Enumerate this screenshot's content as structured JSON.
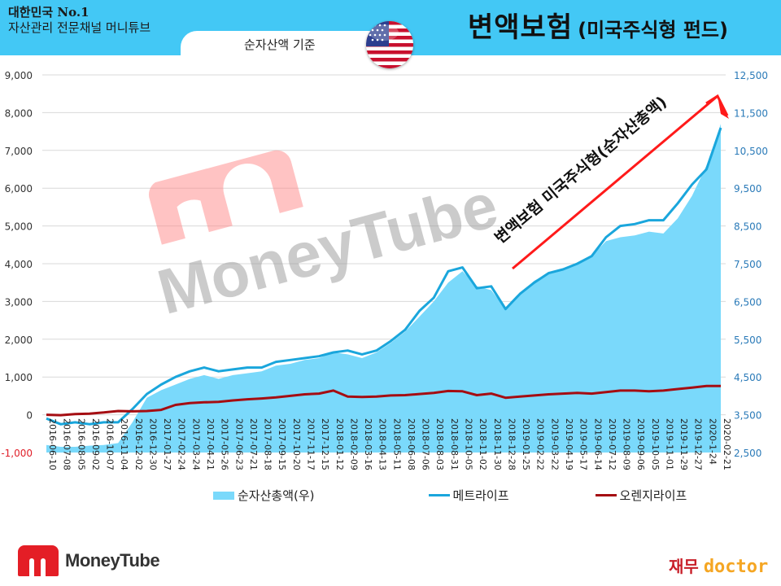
{
  "header": {
    "tagline_line1": "대한민국 No.1",
    "tagline_line2": "자산관리 전문채널 머니튜브",
    "subtitle": "순자산액 기준",
    "title_main": "변액보험",
    "title_sub": "(미국주식형 펀드)",
    "flag_icon": "us-flag-icon",
    "band_color": "#43c8f5"
  },
  "watermark": {
    "text": "MoneyTube"
  },
  "annotation": {
    "text": "변액보험 미국주식형(순자산총액)",
    "arrow_color": "#ff1a1a"
  },
  "legend": {
    "items": [
      {
        "label": "순자산총액(우)",
        "color": "#7ad9fb",
        "kind": "area"
      },
      {
        "label": "메트라이프",
        "color": "#1aa6dc",
        "kind": "line"
      },
      {
        "label": "오렌지라이프",
        "color": "#a50d12",
        "kind": "line"
      }
    ]
  },
  "footer": {
    "logo_left": "MoneyTube",
    "logo_right_kr": "재무",
    "logo_right_en": "doctor"
  },
  "chart_data": {
    "type": "line",
    "title": "변액보험 (미국주식형 펀드)",
    "subtitle": "순자산액 기준",
    "xlabel": "",
    "ylabel": "",
    "y_left": {
      "ticks": [
        "9,000",
        "8,000",
        "7,000",
        "6,000",
        "5,000",
        "4,000",
        "3,000",
        "2,000",
        "1,000",
        "0",
        "-1,000"
      ],
      "range": [
        -1000,
        9000
      ]
    },
    "y_right": {
      "ticks": [
        "12,500",
        "11,500",
        "10,500",
        "9,500",
        "8,500",
        "7,500",
        "6,500",
        "5,500",
        "4,500",
        "3,500",
        "2,500"
      ],
      "range": [
        2500,
        12500
      ]
    },
    "grid": true,
    "legend_position": "bottom",
    "categories": [
      "2016-06-10",
      "2016-07-08",
      "2016-08-05",
      "2016-09-02",
      "2016-10-07",
      "2016-11-04",
      "2016-12-02",
      "2016-12-30",
      "2017-01-27",
      "2017-02-24",
      "2017-03-24",
      "2017-04-21",
      "2017-05-26",
      "2017-06-23",
      "2017-07-21",
      "2017-08-18",
      "2017-09-15",
      "2017-10-20",
      "2017-11-17",
      "2017-12-15",
      "2018-01-12",
      "2018-02-09",
      "2018-03-16",
      "2018-04-13",
      "2018-05-11",
      "2018-06-08",
      "2018-07-06",
      "2018-08-03",
      "2018-08-31",
      "2018-10-05",
      "2018-11-02",
      "2018-11-30",
      "2018-12-28",
      "2019-01-25",
      "2019-02-22",
      "2019-03-22",
      "2019-04-19",
      "2019-05-17",
      "2019-06-14",
      "2019-07-12",
      "2019-08-09",
      "2019-09-06",
      "2019-10-05",
      "2019-11-01",
      "2019-11-29",
      "2019-12-27",
      "2020-1-24",
      "2020-02-21"
    ],
    "series": [
      {
        "name": "순자산총액(우)",
        "axis": "right",
        "values": [
          2700,
          2650,
          2650,
          2680,
          2700,
          2750,
          3300,
          3950,
          4150,
          4300,
          4450,
          4550,
          4450,
          4550,
          4600,
          4650,
          4800,
          4850,
          4950,
          5000,
          5150,
          5100,
          5000,
          5150,
          5400,
          5700,
          6100,
          6500,
          7000,
          7300,
          6900,
          6800,
          6300,
          6700,
          7050,
          7250,
          7350,
          7500,
          7700,
          8100,
          8200,
          8250,
          8350,
          8300,
          8700,
          9300,
          10100,
          11200
        ]
      },
      {
        "name": "메트라이프",
        "axis": "left",
        "values": [
          -100,
          -250,
          -200,
          -250,
          -200,
          -200,
          150,
          550,
          800,
          1000,
          1150,
          1250,
          1150,
          1200,
          1250,
          1250,
          1400,
          1450,
          1500,
          1550,
          1650,
          1700,
          1600,
          1700,
          1950,
          2250,
          2750,
          3100,
          3800,
          3900,
          3350,
          3400,
          2800,
          3200,
          3500,
          3750,
          3850,
          4000,
          4200,
          4700,
          5000,
          5050,
          5150,
          5150,
          5600,
          6100,
          6500,
          7600
        ]
      },
      {
        "name": "오렌지라이프",
        "axis": "left",
        "values": [
          0,
          -10,
          20,
          30,
          60,
          100,
          90,
          100,
          130,
          260,
          310,
          330,
          340,
          380,
          410,
          430,
          460,
          500,
          540,
          560,
          640,
          480,
          470,
          480,
          510,
          520,
          550,
          580,
          630,
          620,
          520,
          560,
          450,
          480,
          510,
          540,
          560,
          580,
          560,
          600,
          640,
          640,
          620,
          640,
          680,
          720,
          760,
          760
        ]
      }
    ]
  }
}
